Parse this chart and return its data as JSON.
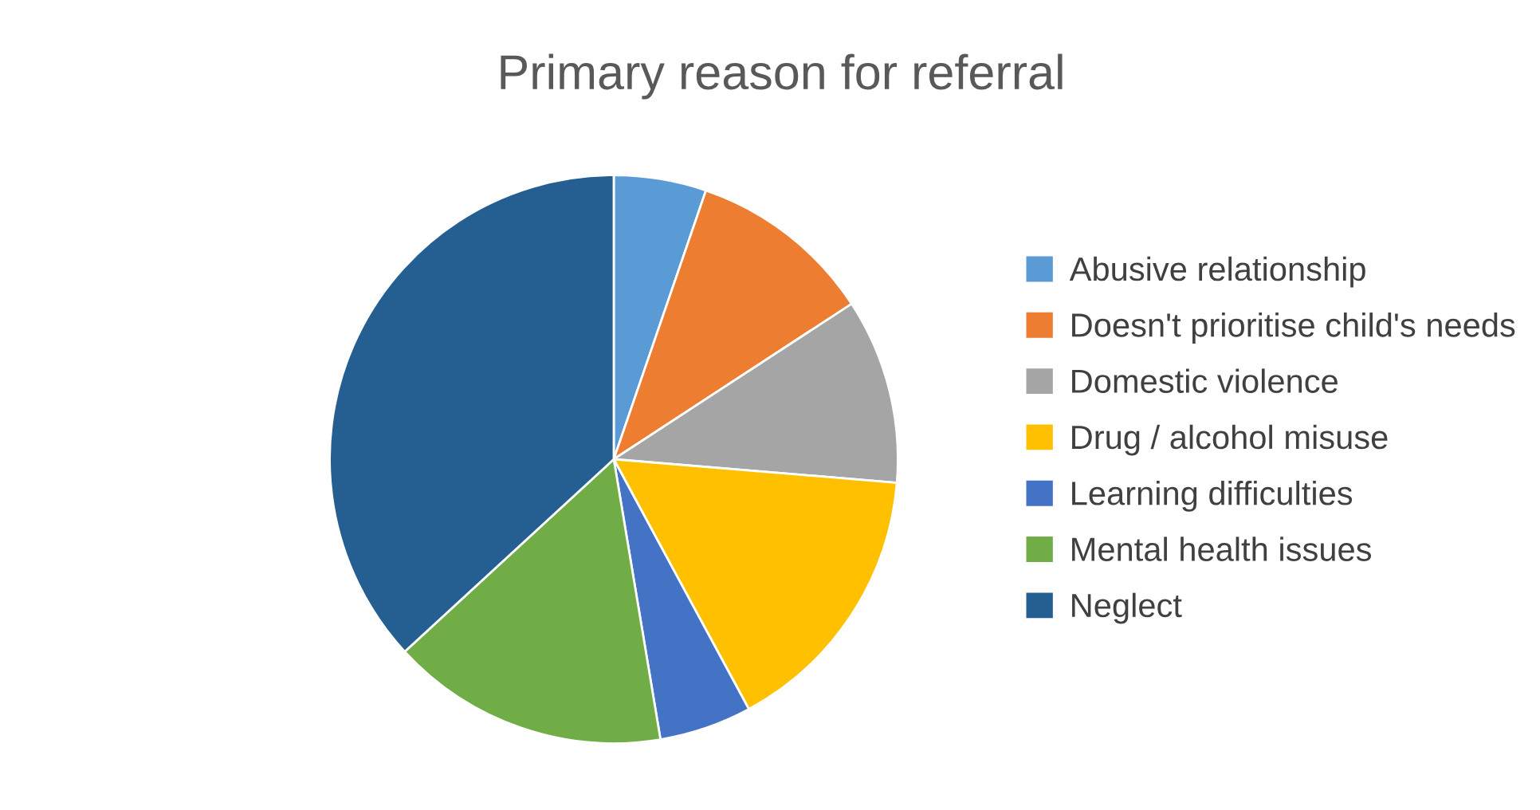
{
  "chart_data": {
    "type": "pie",
    "title": "Primary reason for referral",
    "categories": [
      "Abusive relationship",
      "Doesn't prioritise child's needs",
      "Domestic violence",
      "Drug / alcohol misuse",
      "Learning difficulties",
      "Mental health issues",
      "Neglect"
    ],
    "values": [
      5.26,
      10.53,
      10.53,
      15.79,
      5.26,
      15.79,
      36.84
    ],
    "colors": [
      "#5b9bd5",
      "#ed7d31",
      "#a5a5a5",
      "#ffc000",
      "#4472c4",
      "#70ad47",
      "#255e91"
    ],
    "legend": "right"
  }
}
